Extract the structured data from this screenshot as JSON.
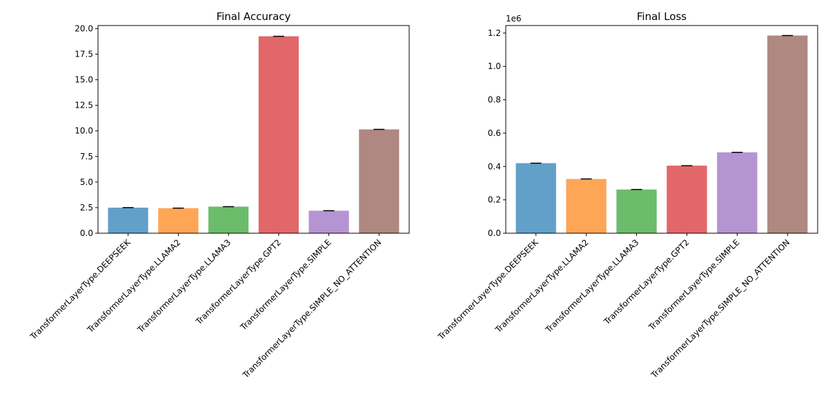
{
  "chart_data": [
    {
      "type": "bar",
      "title": "Final Accuracy",
      "xlabel": "",
      "ylabel": "",
      "categories": [
        "TransformerLayerType.DEEPSEEK",
        "TransformerLayerType.LLAMA2",
        "TransformerLayerType.LLAMA3",
        "TransformerLayerType.GPT2",
        "TransformerLayerType.SIMPLE",
        "TransformerLayerType.SIMPLE_NO_ATTENTION"
      ],
      "values": [
        2.5,
        2.45,
        2.6,
        19.25,
        2.2,
        10.15
      ],
      "error_bars": true,
      "ylim": [
        0,
        20.3
      ],
      "yticks": [
        "0.0",
        "2.5",
        "5.0",
        "7.5",
        "10.0",
        "12.5",
        "15.0",
        "17.5",
        "20.0"
      ],
      "ytick_values": [
        0,
        2.5,
        5,
        7.5,
        10,
        12.5,
        15,
        17.5,
        20
      ],
      "offset_label": "",
      "grid": false,
      "colors": [
        "#1f77b4",
        "#ff7f0e",
        "#2ca02c",
        "#d62728",
        "#9467bd",
        "#8c564b"
      ]
    },
    {
      "type": "bar",
      "title": "Final Loss",
      "xlabel": "",
      "ylabel": "",
      "categories": [
        "TransformerLayerType.DEEPSEEK",
        "TransformerLayerType.LLAMA2",
        "TransformerLayerType.LLAMA3",
        "TransformerLayerType.GPT2",
        "TransformerLayerType.SIMPLE",
        "TransformerLayerType.SIMPLE_NO_ATTENTION"
      ],
      "values": [
        420000,
        325000,
        262000,
        405000,
        485000,
        1185000
      ],
      "error_bars": true,
      "ylim": [
        0,
        1245000
      ],
      "yticks": [
        "0.0",
        "0.2",
        "0.4",
        "0.6",
        "0.8",
        "1.0",
        "1.2"
      ],
      "ytick_values": [
        0,
        200000,
        400000,
        600000,
        800000,
        1000000,
        1200000
      ],
      "offset_label": "1e6",
      "grid": false,
      "colors": [
        "#1f77b4",
        "#ff7f0e",
        "#2ca02c",
        "#d62728",
        "#9467bd",
        "#8c564b"
      ]
    }
  ]
}
